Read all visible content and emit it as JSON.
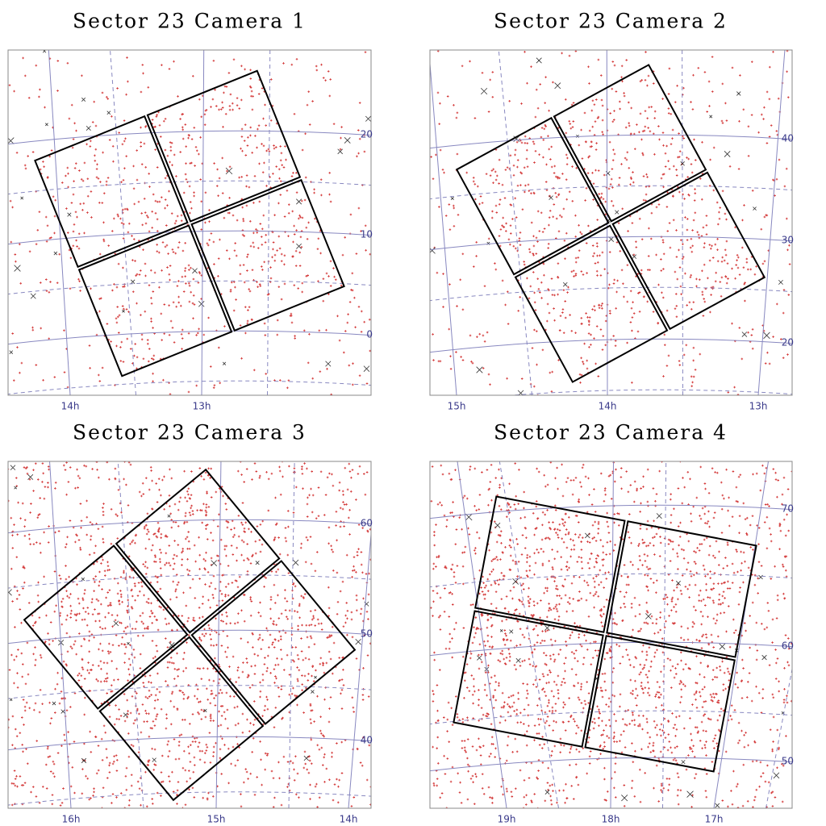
{
  "panels": [
    {
      "title": "Sector 23 Camera 1",
      "ra_labels": [
        "14h",
        "13h"
      ],
      "dec_labels": [
        "20",
        "10",
        "0"
      ]
    },
    {
      "title": "Sector 23 Camera 2",
      "ra_labels": [
        "15h",
        "14h",
        "13h"
      ],
      "dec_labels": [
        "40",
        "30",
        "20"
      ]
    },
    {
      "title": "Sector 23 Camera 3",
      "ra_labels": [
        "16h",
        "15h",
        "14h"
      ],
      "dec_labels": [
        "60",
        "50",
        "40"
      ]
    },
    {
      "title": "Sector 23 Camera 4",
      "ra_labels": [
        "19h",
        "18h",
        "17h"
      ],
      "dec_labels": [
        "70",
        "60",
        "50"
      ]
    }
  ]
}
